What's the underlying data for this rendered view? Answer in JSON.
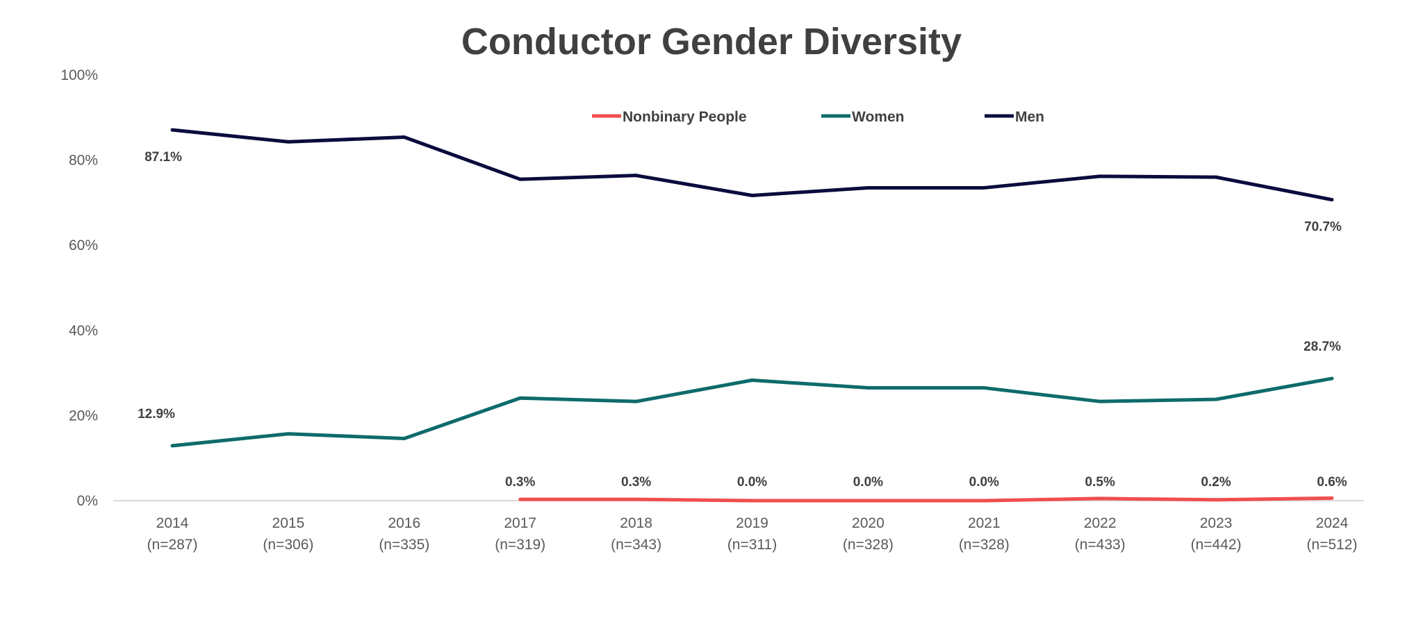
{
  "chart_data": {
    "type": "line",
    "title": "Conductor Gender Diversity",
    "xlabel": "",
    "ylabel": "",
    "ylim": [
      0,
      100
    ],
    "yticks": [
      "0%",
      "20%",
      "40%",
      "60%",
      "80%",
      "100%"
    ],
    "grid": false,
    "legend_position": "top",
    "categories": [
      "2014",
      "2015",
      "2016",
      "2017",
      "2018",
      "2019",
      "2020",
      "2021",
      "2022",
      "2023",
      "2024"
    ],
    "category_sublabels": [
      "(n=287)",
      "(n=306)",
      "(n=335)",
      "(n=319)",
      "(n=343)",
      "(n=311)",
      "(n=328)",
      "(n=328)",
      "(n=433)",
      "(n=442)",
      "(n=512)"
    ],
    "series": [
      {
        "name": "Nonbinary People",
        "color": "#f04e4e",
        "values": [
          null,
          null,
          null,
          0.3,
          0.3,
          0.0,
          0.0,
          0.0,
          0.5,
          0.2,
          0.6
        ],
        "labels": [
          "",
          "",
          "",
          "0.3%",
          "0.3%",
          "0.0%",
          "0.0%",
          "0.0%",
          "0.5%",
          "0.2%",
          "0.6%"
        ]
      },
      {
        "name": "Women",
        "color": "#0e6b6b",
        "values": [
          12.9,
          15.7,
          14.6,
          24.1,
          23.3,
          28.3,
          26.5,
          26.5,
          23.3,
          23.8,
          28.7
        ],
        "labels": [
          "12.9%",
          "",
          "",
          "",
          "",
          "",
          "",
          "",
          "",
          "",
          "28.7%"
        ]
      },
      {
        "name": "Men",
        "color": "#0b0b3d",
        "values": [
          87.1,
          84.3,
          85.4,
          75.5,
          76.4,
          71.7,
          73.5,
          73.5,
          76.2,
          76.0,
          70.7
        ],
        "labels": [
          "87.1%",
          "",
          "",
          "",
          "",
          "",
          "",
          "",
          "",
          "",
          "70.7%"
        ]
      }
    ]
  }
}
